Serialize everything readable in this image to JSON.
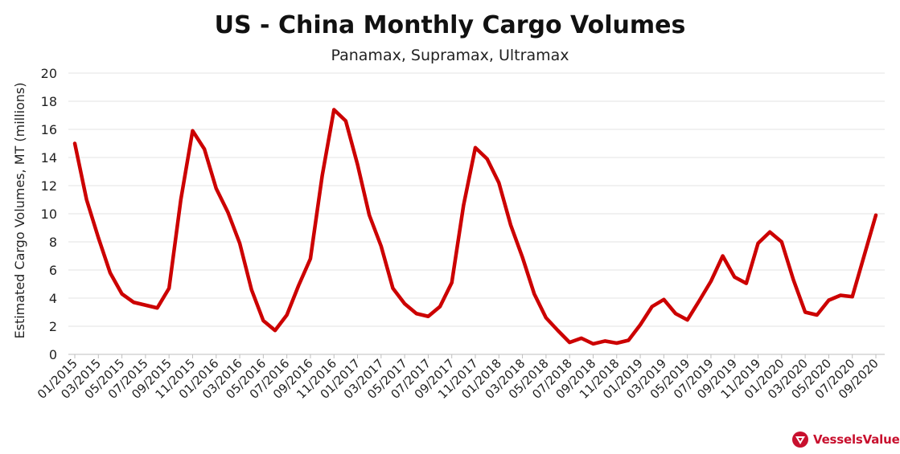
{
  "chart_data": {
    "type": "line",
    "title": "US - China Monthly Cargo Volumes",
    "subtitle": "Panamax, Supramax, Ultramax",
    "xlabel": "",
    "ylabel": "Estimated Cargo Volumes, MT (millions)",
    "ylim": [
      0,
      20
    ],
    "yticks": [
      0,
      2,
      4,
      6,
      8,
      10,
      12,
      14,
      16,
      18,
      20
    ],
    "grid": true,
    "line_color": "#cc0000",
    "x_tick_labels": [
      "01/2015",
      "03/2015",
      "05/2015",
      "07/2015",
      "09/2015",
      "11/2015",
      "01/2016",
      "03/2016",
      "05/2016",
      "07/2016",
      "09/2016",
      "11/2016",
      "01/2017",
      "03/2017",
      "05/2017",
      "07/2017",
      "09/2017",
      "11/2017",
      "01/2018",
      "03/2018",
      "05/2018",
      "07/2018",
      "09/2018",
      "11/2018",
      "01/2019",
      "03/2019",
      "05/2019",
      "07/2019",
      "09/2019",
      "11/2019",
      "01/2020",
      "03/2020",
      "05/2020",
      "07/2020",
      "09/2020"
    ],
    "series": [
      {
        "values": [
          15.0,
          11.0,
          8.3,
          5.8,
          4.3,
          3.7,
          3.5,
          3.3,
          4.7,
          11.0,
          15.9,
          14.6,
          11.8,
          10.1,
          7.9,
          4.6,
          2.4,
          1.7,
          2.8,
          4.9,
          6.8,
          12.7,
          17.4,
          16.6,
          13.5,
          9.9,
          7.7,
          4.7,
          3.6,
          2.9,
          2.7,
          3.4,
          5.1,
          10.6,
          14.7,
          13.9,
          12.2,
          9.2,
          6.9,
          4.3,
          2.6,
          1.7,
          0.85,
          1.15,
          0.75,
          0.95,
          0.8,
          1.0,
          2.1,
          3.4,
          3.9,
          2.9,
          2.45,
          3.8,
          5.2,
          7.0,
          5.5,
          5.05,
          7.9,
          8.7,
          8.0,
          5.3,
          3.0,
          2.8,
          3.85,
          4.2,
          4.1,
          7.0,
          9.9
        ]
      }
    ]
  },
  "logo": {
    "text": "VesselsValue"
  }
}
